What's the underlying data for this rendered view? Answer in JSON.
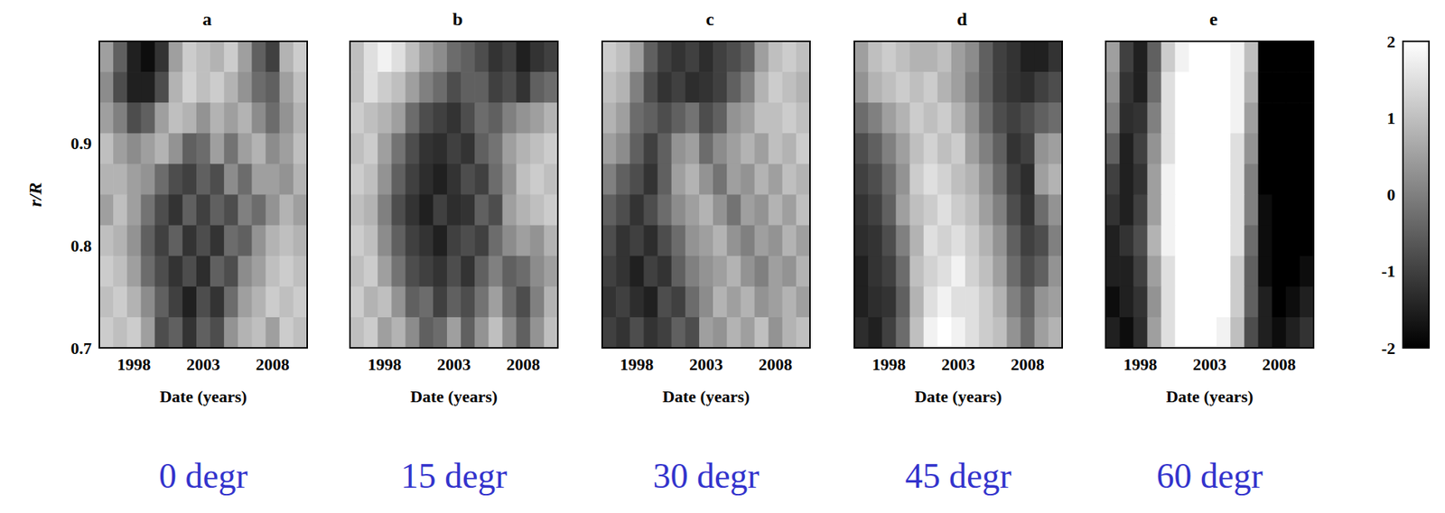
{
  "chart_data": {
    "type": "heatmap",
    "xlabel": "Date (years)",
    "ylabel": "r/R",
    "x": [
      1996,
      1997,
      1998,
      1999,
      2000,
      2001,
      2002,
      2003,
      2004,
      2005,
      2006,
      2007,
      2008,
      2009,
      2010
    ],
    "y": [
      0.985,
      0.955,
      0.925,
      0.895,
      0.865,
      0.835,
      0.805,
      0.775,
      0.745,
      0.715
    ],
    "xlim": [
      1995.5,
      2010.5
    ],
    "ylim": [
      0.7,
      1.0
    ],
    "xticks": [
      1998,
      2003,
      2008
    ],
    "yticks": [
      0.7,
      0.8,
      0.9
    ],
    "colorbar": {
      "range": [
        -2,
        2
      ],
      "ticks": [
        -2,
        -1,
        0,
        1,
        2
      ]
    },
    "panels": [
      {
        "title": "a",
        "annotation": "0 degr",
        "values": [
          [
            0.5,
            -0.5,
            -1.5,
            -1.8,
            -1.2,
            0.5,
            1.2,
            1.0,
            0.8,
            1.2,
            0.5,
            -0.5,
            -1.0,
            0.8,
            1.2
          ],
          [
            0.2,
            -0.8,
            -1.5,
            -1.5,
            -0.8,
            0.8,
            1.3,
            1.0,
            1.2,
            0.8,
            0.3,
            -0.3,
            -0.5,
            0.5,
            1.0
          ],
          [
            0.5,
            0,
            -0.8,
            -0.5,
            0.5,
            1.0,
            0.8,
            0.3,
            0.8,
            0.5,
            0.8,
            0.2,
            -0.3,
            0.3,
            0.8
          ],
          [
            1.0,
            0.5,
            0.2,
            0.5,
            0.8,
            0.3,
            -0.5,
            -0.3,
            0.5,
            -0.2,
            0.5,
            0.8,
            0.2,
            0.5,
            1.0
          ],
          [
            0.8,
            0.8,
            0.5,
            0.3,
            -0.3,
            -0.8,
            -1.0,
            -0.5,
            -0.8,
            0.2,
            -0.3,
            0.5,
            0.5,
            0.3,
            0.8
          ],
          [
            0.5,
            1.0,
            0.5,
            -0.2,
            -0.8,
            -1.2,
            -0.5,
            -1.0,
            -0.5,
            -0.8,
            0,
            -0.3,
            0.3,
            0.8,
            0.5
          ],
          [
            1.0,
            0.8,
            0.3,
            -0.5,
            -1.0,
            -0.5,
            -1.2,
            -0.8,
            -1.2,
            -0.3,
            -0.5,
            0.3,
            0.8,
            1.0,
            0.8
          ],
          [
            1.2,
            1.0,
            0.5,
            -0.3,
            -0.8,
            -1.2,
            -0.8,
            -1.3,
            -0.5,
            -0.8,
            0.2,
            0.5,
            1.0,
            1.2,
            1.0
          ],
          [
            1.0,
            1.2,
            0.8,
            0.2,
            -0.5,
            -1.0,
            -1.5,
            -0.8,
            -1.2,
            -0.3,
            0.5,
            0.8,
            1.2,
            1.0,
            1.2
          ],
          [
            1.2,
            1.0,
            1.2,
            0.5,
            -0.8,
            -0.5,
            -1.2,
            -0.5,
            -0.8,
            0.3,
            0.8,
            1.0,
            0.5,
            1.2,
            1.0
          ]
        ]
      },
      {
        "title": "b",
        "annotation": "15 degr",
        "values": [
          [
            1.0,
            1.5,
            1.8,
            1.5,
            1.0,
            0.5,
            0.2,
            -0.3,
            -0.5,
            -0.8,
            -1.2,
            -1.0,
            -1.5,
            -1.2,
            -1.0
          ],
          [
            1.0,
            1.5,
            1.2,
            1.0,
            0.5,
            0,
            -0.3,
            -0.8,
            -0.5,
            -0.5,
            -1.0,
            -0.8,
            -1.2,
            -0.5,
            -0.3
          ],
          [
            1.2,
            1.0,
            0.8,
            0.5,
            -0.3,
            -0.8,
            -1.0,
            -1.2,
            -0.8,
            -0.3,
            -0.5,
            0,
            0.3,
            0.5,
            0.8
          ],
          [
            1.0,
            1.2,
            0.5,
            -0.2,
            -0.8,
            -1.2,
            -1.3,
            -1.0,
            -1.2,
            -0.5,
            -0.2,
            0.5,
            0.8,
            1.0,
            1.2
          ],
          [
            1.2,
            1.0,
            0.3,
            -0.5,
            -1.0,
            -1.3,
            -1.5,
            -1.2,
            -0.8,
            -1.0,
            -0.3,
            0.3,
            1.0,
            1.2,
            1.0
          ],
          [
            1.0,
            0.8,
            0,
            -0.8,
            -1.2,
            -1.5,
            -1.0,
            -1.3,
            -1.2,
            -0.5,
            -0.8,
            0.5,
            0.8,
            1.0,
            1.2
          ],
          [
            1.2,
            1.0,
            0.2,
            -0.5,
            -1.0,
            -1.2,
            -1.5,
            -1.0,
            -0.8,
            -1.0,
            -0.3,
            0.2,
            0.5,
            0.3,
            0.8
          ],
          [
            1.0,
            1.2,
            0.5,
            -0.2,
            -0.8,
            -1.0,
            -1.2,
            -0.8,
            -1.2,
            -0.5,
            0,
            -0.5,
            -0.3,
            0.2,
            0.5
          ],
          [
            1.2,
            0.8,
            1.0,
            0.3,
            -0.5,
            -0.3,
            -1.0,
            -0.5,
            -0.8,
            -0.2,
            0.5,
            -0.3,
            -0.8,
            0,
            0.8
          ],
          [
            1.0,
            1.2,
            0.5,
            0.8,
            0.2,
            -0.5,
            -0.3,
            0.5,
            -0.5,
            0.3,
            1.0,
            0.2,
            -0.5,
            0.3,
            1.0
          ]
        ]
      },
      {
        "title": "c",
        "annotation": "30 degr",
        "values": [
          [
            1.2,
            1.0,
            0.5,
            -0.5,
            -1.0,
            -1.2,
            -1.0,
            -1.3,
            -1.0,
            -0.8,
            -0.5,
            0.5,
            1.0,
            1.2,
            1.0
          ],
          [
            1.0,
            0.8,
            0,
            -0.8,
            -1.2,
            -1.0,
            -1.3,
            -1.2,
            -1.0,
            -0.5,
            0,
            0.8,
            1.2,
            1.0,
            0.8
          ],
          [
            0.8,
            0.5,
            -0.3,
            -0.5,
            -0.8,
            -0.5,
            -0.2,
            -0.8,
            -0.5,
            0.3,
            0.5,
            1.0,
            1.0,
            1.2,
            1.0
          ],
          [
            0.5,
            0.2,
            -0.5,
            -1.0,
            -0.5,
            0.3,
            0.5,
            -0.3,
            0.2,
            0.5,
            0.8,
            0.5,
            1.0,
            0.8,
            1.2
          ],
          [
            0,
            -0.5,
            -0.8,
            -1.2,
            -0.5,
            0.5,
            0.8,
            0.3,
            -0.2,
            0.5,
            0.3,
            0.8,
            0.5,
            1.0,
            0.8
          ],
          [
            -0.5,
            -0.8,
            -1.2,
            -0.8,
            -0.3,
            0.2,
            0.5,
            0.8,
            0.3,
            -0.2,
            0.5,
            0.3,
            0.8,
            0.5,
            1.0
          ],
          [
            -0.8,
            -1.2,
            -1.0,
            -1.3,
            -0.8,
            -0.3,
            0.3,
            0.5,
            0.8,
            0.3,
            0,
            0.5,
            0.3,
            0.8,
            0.5
          ],
          [
            -1.0,
            -1.2,
            -1.5,
            -1.0,
            -1.2,
            -0.5,
            0,
            0.3,
            0.5,
            0.8,
            0.3,
            0,
            0.5,
            0.3,
            0.8
          ],
          [
            -1.2,
            -1.0,
            -1.3,
            -1.5,
            -0.8,
            -1.0,
            -0.3,
            0.2,
            0.8,
            0.5,
            0.8,
            0.3,
            0.5,
            0.8,
            0.5
          ],
          [
            -1.0,
            -1.2,
            -0.8,
            -1.2,
            -1.0,
            -0.5,
            -0.8,
            0.5,
            0.3,
            0.8,
            0.5,
            1.0,
            0.3,
            0.8,
            1.0
          ]
        ]
      },
      {
        "title": "d",
        "annotation": "45 degr",
        "values": [
          [
            0.5,
            1.0,
            1.2,
            1.0,
            0.8,
            0.8,
            1.0,
            0.5,
            0.2,
            -0.5,
            -1.0,
            -1.2,
            -1.5,
            -1.5,
            -1.2
          ],
          [
            0.3,
            0.8,
            1.0,
            1.2,
            1.0,
            1.2,
            0.8,
            0.5,
            0,
            -0.5,
            -1.0,
            -1.2,
            -1.3,
            -1.0,
            -0.8
          ],
          [
            -0.3,
            0,
            0.5,
            0.8,
            1.2,
            1.0,
            1.2,
            0.8,
            0.3,
            -0.3,
            -0.8,
            -1.0,
            -0.8,
            -0.5,
            -0.3
          ],
          [
            -0.8,
            -0.5,
            0,
            0.5,
            1.0,
            1.3,
            1.0,
            1.2,
            0.5,
            0,
            -0.5,
            -1.2,
            -1.0,
            0.3,
            0.5
          ],
          [
            -1.0,
            -0.8,
            -0.3,
            0.3,
            1.2,
            1.5,
            1.3,
            1.0,
            0.8,
            0.3,
            -0.3,
            -1.0,
            -1.3,
            0.5,
            0.8
          ],
          [
            -1.2,
            -1.0,
            -0.5,
            0.5,
            1.0,
            1.2,
            1.5,
            1.2,
            1.0,
            0.5,
            0,
            -0.8,
            -1.2,
            -0.3,
            0.3
          ],
          [
            -1.3,
            -1.2,
            -0.8,
            0,
            0.8,
            1.5,
            1.3,
            1.5,
            1.2,
            0.8,
            0.3,
            -0.5,
            -1.0,
            -0.8,
            0
          ],
          [
            -1.5,
            -1.2,
            -1.0,
            -0.3,
            1.0,
            1.3,
            1.5,
            1.8,
            1.3,
            1.0,
            0.5,
            -0.3,
            -0.8,
            -0.5,
            0.3
          ],
          [
            -1.5,
            -1.3,
            -1.2,
            -0.5,
            0.8,
            1.5,
            1.8,
            1.5,
            1.5,
            1.2,
            0.8,
            0,
            -0.5,
            0.3,
            0.5
          ],
          [
            -1.3,
            -1.5,
            -1.0,
            -0.3,
            1.0,
            1.8,
            2.0,
            1.8,
            1.5,
            1.2,
            1.0,
            0.3,
            -0.3,
            0.5,
            0.8
          ]
        ]
      },
      {
        "title": "e",
        "annotation": "60 degr",
        "values": [
          [
            0.5,
            -1.0,
            -1.5,
            -0.5,
            1.2,
            1.8,
            2.0,
            2.0,
            2.0,
            1.8,
            1.0,
            -2.0,
            -2.0,
            -2.0,
            -2.0
          ],
          [
            0.3,
            -1.2,
            -1.5,
            -0.3,
            1.5,
            2.0,
            2.0,
            2.0,
            2.0,
            1.8,
            0.8,
            -2.0,
            -2.0,
            -2.0,
            -2.0
          ],
          [
            0,
            -1.3,
            -1.2,
            0,
            1.5,
            2.0,
            2.0,
            2.0,
            2.0,
            1.8,
            0.5,
            -2.0,
            -2.0,
            -2.0,
            -2.0
          ],
          [
            -0.5,
            -1.5,
            -1.0,
            0.3,
            1.5,
            2.0,
            2.0,
            2.0,
            2.0,
            1.5,
            0.3,
            -2.0,
            -2.0,
            -2.0,
            -2.0
          ],
          [
            -1.0,
            -1.5,
            -1.2,
            0.5,
            1.8,
            2.0,
            2.0,
            2.0,
            2.0,
            1.5,
            0,
            -2.0,
            -2.0,
            -2.0,
            -2.0
          ],
          [
            -1.2,
            -1.5,
            -1.0,
            0.5,
            1.8,
            2.0,
            2.0,
            2.0,
            2.0,
            1.5,
            0,
            -1.8,
            -2.0,
            -2.0,
            -2.0
          ],
          [
            -1.5,
            -1.2,
            -0.8,
            0.8,
            1.8,
            2.0,
            2.0,
            2.0,
            2.0,
            1.5,
            -0.3,
            -1.8,
            -2.0,
            -2.0,
            -2.0
          ],
          [
            -1.5,
            -1.5,
            -1.0,
            0.5,
            1.5,
            2.0,
            2.0,
            2.0,
            2.0,
            1.2,
            -0.5,
            -1.8,
            -2.0,
            -2.0,
            -1.8
          ],
          [
            -1.8,
            -1.5,
            -1.2,
            0.3,
            1.5,
            2.0,
            2.0,
            2.0,
            2.0,
            1.2,
            -0.5,
            -1.5,
            -2.0,
            -1.8,
            -1.5
          ],
          [
            -1.5,
            -1.8,
            -1.3,
            0.5,
            1.5,
            2.0,
            2.0,
            2.0,
            1.8,
            1.0,
            -0.8,
            -1.5,
            -1.8,
            -1.5,
            -1.2
          ]
        ]
      }
    ]
  }
}
